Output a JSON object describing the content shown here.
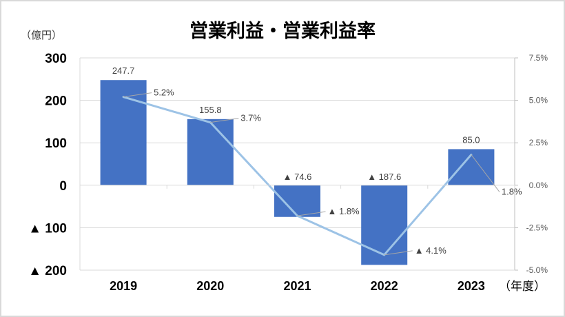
{
  "chart_data": {
    "type": "bar",
    "title": "営業利益・営業利益率",
    "ylabel": "（億円）",
    "xlabel": "（年度）",
    "categories": [
      "2019",
      "2020",
      "2021",
      "2022",
      "2023"
    ],
    "ylim": [
      -200,
      300
    ],
    "y_ticks": [
      300,
      200,
      100,
      0,
      -100,
      -200
    ],
    "y_tick_labels": [
      "300",
      "200",
      "100",
      "0",
      "▲ 100",
      "▲ 200"
    ],
    "y2lim": [
      -5.0,
      7.5
    ],
    "y2_ticks": [
      7.5,
      5.0,
      2.5,
      0.0,
      -2.5,
      -5.0
    ],
    "y2_tick_labels": [
      "7.5%",
      "5.0%",
      "2.5%",
      "0.0%",
      "-2.5%",
      "-5.0%"
    ],
    "grid": true,
    "series": [
      {
        "type": "bar",
        "axis": "left",
        "color": "#4472c4",
        "values": [
          247.7,
          155.8,
          -74.6,
          -187.6,
          85.0
        ],
        "labels": [
          "247.7",
          "155.8",
          "▲ 74.6",
          "▲ 187.6",
          "85.0"
        ]
      },
      {
        "type": "line",
        "axis": "right",
        "color": "#9dc3e6",
        "values": [
          5.2,
          3.7,
          -1.8,
          -4.1,
          1.8
        ],
        "labels": [
          "5.2%",
          "3.7%",
          "▲ 1.8%",
          "▲ 4.1%",
          "1.8%"
        ]
      }
    ]
  }
}
